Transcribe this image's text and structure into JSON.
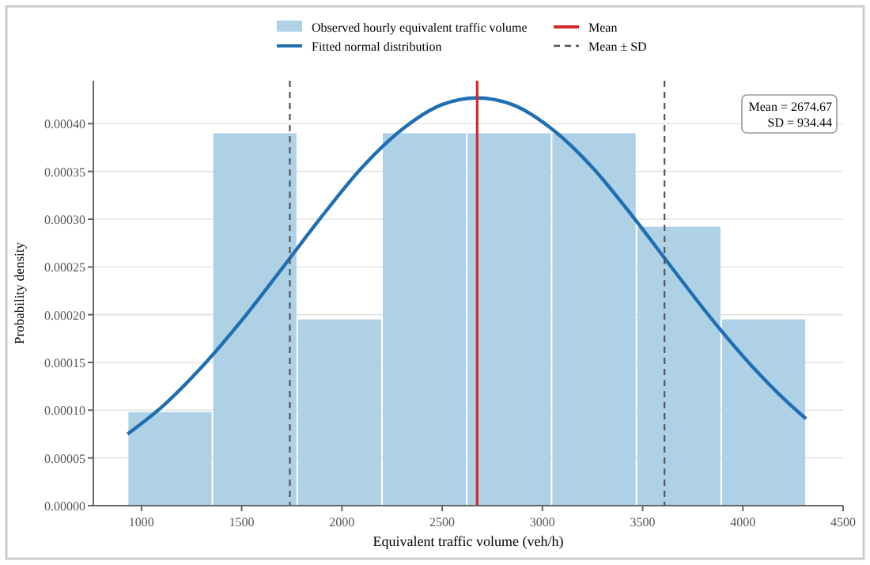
{
  "chart_data": {
    "type": "histogram",
    "xlabel": "Equivalent traffic volume (veh/h)",
    "ylabel": "Probability density",
    "bins": [
      931,
      1354,
      1777,
      2200,
      2623,
      3046,
      3469,
      3892,
      4315
    ],
    "series": [
      {
        "name": "Observed hourly equivalent traffic volume",
        "color": "#aed1e6",
        "values": [
          9.8e-05,
          0.00039,
          0.000195,
          0.00039,
          0.00039,
          0.00039,
          0.000292,
          0.000195
        ]
      },
      {
        "type": "line",
        "name": "Fitted normal distribution",
        "color": "#1f6fb2",
        "x": [
          931,
          1100,
          1300,
          1500,
          1700,
          1900,
          2100,
          2300,
          2500,
          2675,
          2850,
          3050,
          3250,
          3450,
          3650,
          3850,
          4050,
          4250,
          4315
        ],
        "values": [
          7.5e-05,
          0.000103,
          0.000145,
          0.000194,
          0.000248,
          0.000303,
          0.000354,
          0.000394,
          0.00042,
          0.000427,
          0.00042,
          0.000394,
          0.000354,
          0.000303,
          0.000248,
          0.000194,
          0.000145,
          0.000103,
          9.1e-05
        ]
      }
    ],
    "ref_lines": [
      {
        "axis": "x",
        "value": 2674.67,
        "label": "Mean",
        "color": "#d62728",
        "line_style": "solid"
      },
      {
        "axis": "x",
        "value": 1740.23,
        "label": "Mean ± SD",
        "color": "#555555",
        "line_style": "dashed"
      },
      {
        "axis": "x",
        "value": 3609.11,
        "color": "#555555",
        "line_style": "dashed"
      }
    ],
    "annotations": [
      "Mean = 2674.67\nSD = 934.44"
    ],
    "xlim": [
      760,
      4500
    ],
    "xticks": [
      1000,
      1500,
      2000,
      2500,
      3000,
      3500,
      4000,
      4500
    ],
    "ylim": [
      0,
      0.000445
    ],
    "yticks": [
      {
        "value": 0,
        "label": "0.00000"
      },
      {
        "value": 5e-05,
        "label": "0.00005"
      },
      {
        "value": 0.0001,
        "label": "0.00010"
      },
      {
        "value": 0.00015,
        "label": "0.00015"
      },
      {
        "value": 0.0002,
        "label": "0.00020"
      },
      {
        "value": 0.00025,
        "label": "0.00025"
      },
      {
        "value": 0.0003,
        "label": "0.00030"
      },
      {
        "value": 0.00035,
        "label": "0.00035"
      },
      {
        "value": 0.0004,
        "label": "0.00040"
      }
    ],
    "grid": "y",
    "legend": "top"
  }
}
